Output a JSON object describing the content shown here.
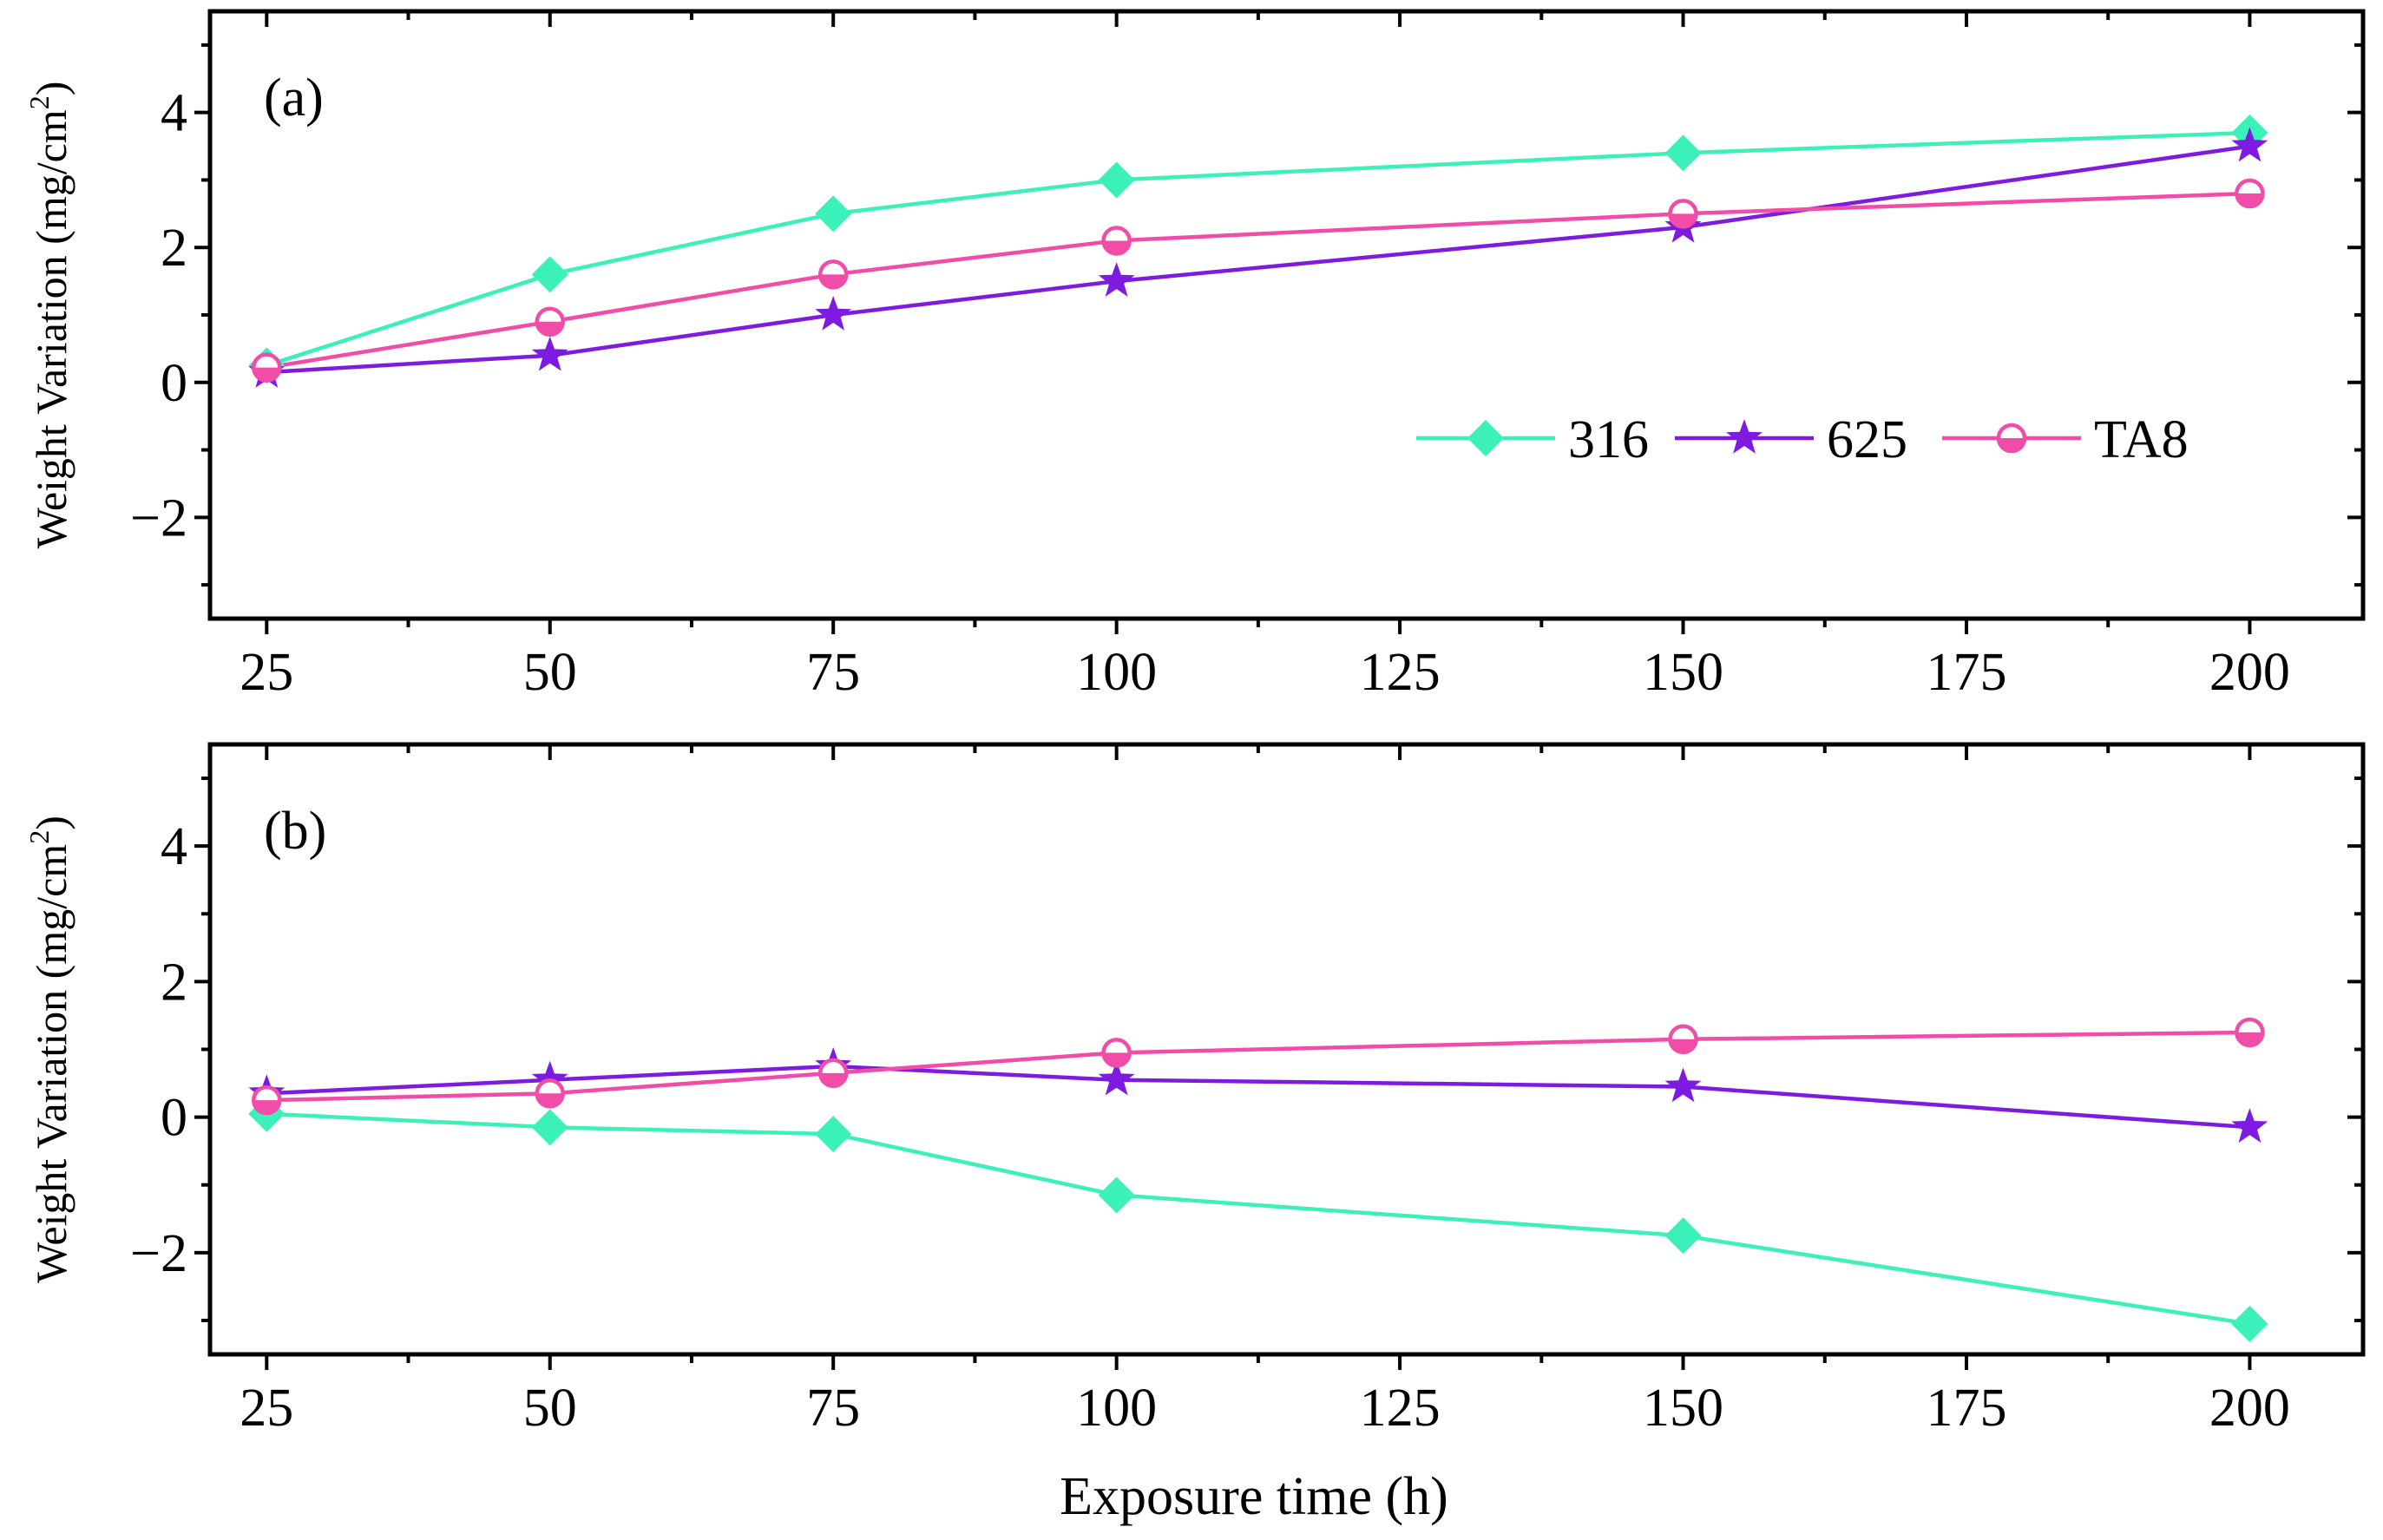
{
  "figure": {
    "xlabel": "Exposure time (h)"
  },
  "legend": {
    "location": "lower-right of panel (a)",
    "entries": [
      "316",
      "625",
      "TA8"
    ]
  },
  "colors": {
    "316": "#3CF0B9",
    "625": "#7D1BE0",
    "TA8": "#F04CA8",
    "axes": "#000000"
  },
  "chart_data": [
    {
      "type": "line",
      "panel_label": "(a)",
      "ylabel": "Weight Variation (mg/cm",
      "ylabel_sup": "2",
      "ylabel_close": ")",
      "xlim": [
        20,
        210
      ],
      "ylim": [
        -3.5,
        5.5
      ],
      "x_ticks": [
        25,
        50,
        75,
        100,
        125,
        150,
        175,
        200
      ],
      "y_ticks": [
        -2,
        0,
        2,
        4
      ],
      "y_tick_labels": [
        "−2",
        "0",
        "2",
        "4"
      ],
      "x": [
        25,
        50,
        75,
        100,
        150,
        200
      ],
      "series": [
        {
          "name": "316",
          "marker": "diamond",
          "values": [
            0.25,
            1.6,
            2.5,
            3.0,
            3.4,
            3.7
          ]
        },
        {
          "name": "625",
          "marker": "star",
          "values": [
            0.15,
            0.4,
            1.0,
            1.5,
            2.3,
            3.5
          ]
        },
        {
          "name": "TA8",
          "marker": "half-circle",
          "values": [
            0.22,
            0.9,
            1.6,
            2.1,
            2.5,
            2.8
          ]
        }
      ]
    },
    {
      "type": "line",
      "panel_label": "(b)",
      "ylabel": "Weight Variation (mg/cm",
      "ylabel_sup": "2",
      "ylabel_close": ")",
      "xlim": [
        20,
        210
      ],
      "ylim": [
        -3.5,
        5.5
      ],
      "x_ticks": [
        25,
        50,
        75,
        100,
        125,
        150,
        175,
        200
      ],
      "y_ticks": [
        -2,
        0,
        2,
        4
      ],
      "y_tick_labels": [
        "−2",
        "0",
        "2",
        "4"
      ],
      "x": [
        25,
        50,
        75,
        100,
        150,
        200
      ],
      "series": [
        {
          "name": "316",
          "marker": "diamond",
          "values": [
            0.05,
            -0.15,
            -0.25,
            -1.15,
            -1.75,
            -3.05
          ]
        },
        {
          "name": "625",
          "marker": "star",
          "values": [
            0.35,
            0.55,
            0.75,
            0.55,
            0.45,
            -0.15
          ]
        },
        {
          "name": "TA8",
          "marker": "half-circle",
          "values": [
            0.25,
            0.35,
            0.65,
            0.95,
            1.15,
            1.25
          ]
        }
      ]
    }
  ]
}
